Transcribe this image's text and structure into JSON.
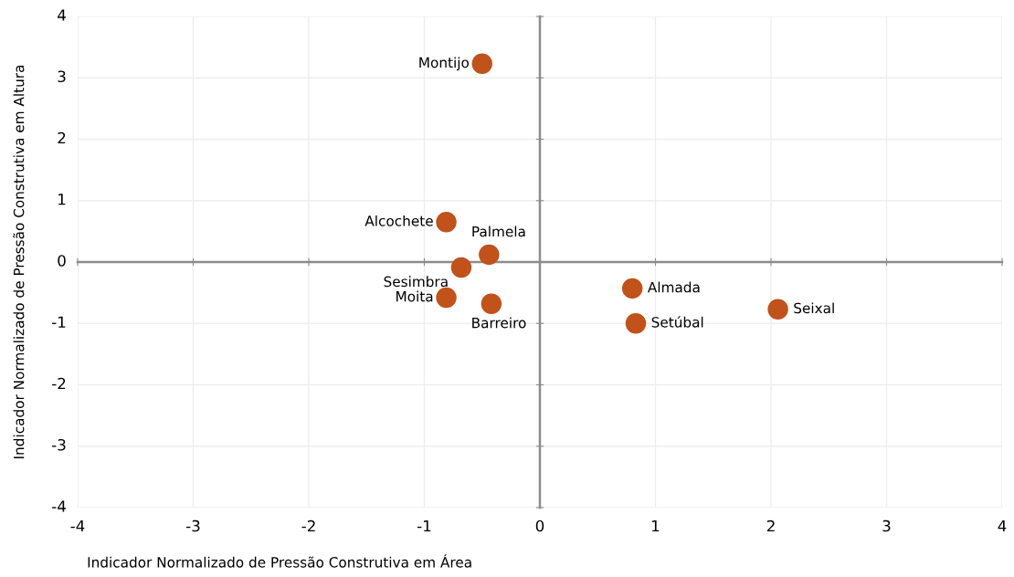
{
  "chart_data": {
    "type": "scatter",
    "xlabel": "Indicador Normalizado de Pressão Construtiva em Área",
    "ylabel": "Indicador Normalizado de Pressão Construtiva em Altura",
    "x": [
      -0.5,
      -0.81,
      -0.44,
      -0.68,
      -0.81,
      -0.42,
      0.8,
      0.83,
      2.06
    ],
    "series": [
      {
        "color": "#c0521a",
        "values": [
          3.23,
          0.65,
          0.12,
          -0.09,
          -0.58,
          -0.68,
          -0.43,
          -1.0,
          -0.77
        ]
      }
    ],
    "annotations": [
      {
        "text": "Montijo",
        "x": -0.5,
        "y": 3.23
      },
      {
        "text": "Alcochete",
        "x": -0.81,
        "y": 0.65
      },
      {
        "text": "Palmela",
        "x": -0.44,
        "y": 0.12
      },
      {
        "text": "Sesimbra",
        "x": -0.68,
        "y": -0.09
      },
      {
        "text": "Moita",
        "x": -0.81,
        "y": -0.58
      },
      {
        "text": "Barreiro",
        "x": -0.42,
        "y": -0.68
      },
      {
        "text": "Almada",
        "x": 0.8,
        "y": -0.43
      },
      {
        "text": "Setúbal",
        "x": 0.83,
        "y": -1.0
      },
      {
        "text": "Seixal",
        "x": 2.06,
        "y": -0.77
      }
    ],
    "xlim": [
      -4,
      4
    ],
    "ylim": [
      -4,
      4
    ],
    "xticks": [
      -4,
      -3,
      -2,
      -1,
      0,
      1,
      2,
      3,
      4
    ],
    "yticks": [
      -4,
      -3,
      -2,
      -1,
      0,
      1,
      2,
      3,
      4
    ],
    "grid": true,
    "marker": "circle",
    "legend": false
  }
}
